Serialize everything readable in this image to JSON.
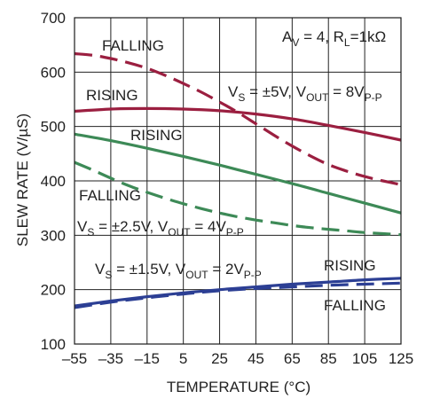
{
  "chart_data": {
    "type": "line",
    "title": "",
    "xlabel": "TEMPERATURE (°C)",
    "ylabel": "SLEW RATE (V/µS)",
    "xlim": [
      -55,
      125
    ],
    "ylim": [
      100,
      700
    ],
    "xticks": [
      -55,
      -35,
      -15,
      5,
      25,
      45,
      65,
      85,
      105,
      125
    ],
    "yticks": [
      100,
      200,
      300,
      400,
      500,
      600,
      700
    ],
    "xtick_labels": [
      "–55",
      "–35",
      "–15",
      "5",
      "25",
      "45",
      "65",
      "85",
      "105",
      "125"
    ],
    "ytick_labels": [
      "100",
      "200",
      "300",
      "400",
      "500",
      "600",
      "700"
    ],
    "grid": true,
    "colors": {
      "red": "#9b1f40",
      "green": "#3d8a57",
      "blue": "#2c3f94"
    },
    "series": [
      {
        "name": "",
        "group": "VS=±5V",
        "edge": "FALLING",
        "style": "dashed",
        "color": "#9b1f40",
        "x": [
          -55,
          -45,
          -35,
          -25,
          -15,
          -5,
          5,
          15,
          25,
          35,
          45,
          55,
          65,
          75,
          85,
          95,
          105,
          115,
          125
        ],
        "y": [
          634,
          631,
          625,
          617,
          607,
          594,
          579,
          563,
          545,
          526,
          505,
          484,
          464,
          446,
          430,
          418,
          408,
          400,
          393
        ]
      },
      {
        "name": "",
        "group": "VS=±5V",
        "edge": "RISING",
        "style": "solid",
        "color": "#9b1f40",
        "x": [
          -55,
          -35,
          -15,
          5,
          25,
          45,
          65,
          85,
          105,
          125
        ],
        "y": [
          528,
          532,
          533,
          532,
          529,
          523,
          514,
          502,
          489,
          475
        ]
      },
      {
        "name": "",
        "group": "VS=±2.5V",
        "edge": "RISING",
        "style": "solid",
        "color": "#3d8a57",
        "x": [
          -55,
          -35,
          -15,
          5,
          25,
          45,
          65,
          85,
          105,
          125
        ],
        "y": [
          486,
          474,
          460,
          445,
          429,
          412,
          395,
          377,
          359,
          341
        ]
      },
      {
        "name": "",
        "group": "VS=±2.5V",
        "edge": "FALLING",
        "style": "dashed",
        "color": "#3d8a57",
        "x": [
          -55,
          -45,
          -35,
          -25,
          -15,
          -5,
          5,
          15,
          25,
          35,
          45,
          55,
          65,
          75,
          85,
          95,
          105,
          115,
          125
        ],
        "y": [
          434,
          420,
          405,
          391,
          379,
          368,
          358,
          349,
          341,
          334,
          328,
          323,
          318,
          314,
          311,
          308,
          305,
          303,
          301
        ]
      },
      {
        "name": "",
        "group": "VS=±1.5V",
        "edge": "RISING",
        "style": "solid",
        "color": "#2c3f94",
        "x": [
          -55,
          -35,
          -15,
          5,
          25,
          45,
          65,
          85,
          105,
          125
        ],
        "y": [
          170,
          179,
          187,
          194,
          200,
          205,
          210,
          214,
          218,
          221
        ]
      },
      {
        "name": "",
        "group": "VS=±1.5V",
        "edge": "FALLING",
        "style": "dashed",
        "color": "#2c3f94",
        "x": [
          -55,
          -35,
          -15,
          5,
          25,
          45,
          65,
          85,
          105,
          125
        ],
        "y": [
          167,
          177,
          185,
          192,
          198,
          202,
          205,
          208,
          210,
          212
        ]
      }
    ],
    "annotations": {
      "conditions": {
        "a_pre": "A",
        "a_sub": "V",
        "a_post": " = 4, R",
        "r_sub": "L",
        "r_post": "=1kΩ"
      },
      "red_falling": "FALLING",
      "red_rising": "RISING",
      "red_supply": {
        "v1": "V",
        "s1": "S",
        "t1": " = ±5V, V",
        "s2": "OUT",
        "t2": " = 8V",
        "s3": "P-P"
      },
      "green_rising": "RISING",
      "green_falling": "FALLING",
      "green_supply": {
        "v1": "V",
        "s1": "S",
        "t1": " = ±2.5V, V",
        "s2": "OUT",
        "t2": " = 4V",
        "s3": "P-P"
      },
      "blue_supply": {
        "v1": "V",
        "s1": "S",
        "t1": " = ±1.5V, V",
        "s2": "OUT",
        "t2": " = 2V",
        "s3": "P-P"
      },
      "blue_rising": "RISING",
      "blue_falling": "FALLING"
    }
  }
}
